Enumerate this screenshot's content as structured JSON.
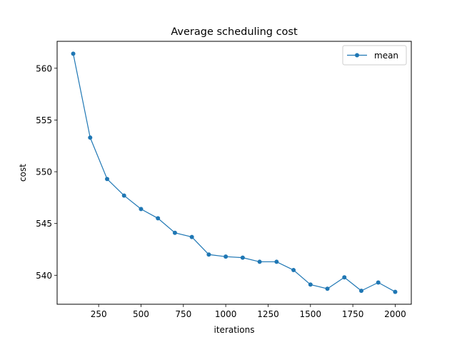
{
  "chart_data": {
    "type": "line",
    "title": "Average scheduling cost",
    "xlabel": "iterations",
    "ylabel": "cost",
    "xlim": [
      5,
      2095
    ],
    "ylim": [
      537.2,
      562.6
    ],
    "xticks": [
      250,
      500,
      750,
      1000,
      1250,
      1500,
      1750,
      2000
    ],
    "yticks": [
      540,
      545,
      550,
      555,
      560
    ],
    "grid": false,
    "legend_position": "top-right",
    "series": [
      {
        "name": "mean",
        "color": "#1f77b4",
        "marker": "circle",
        "x": [
          100,
          200,
          300,
          400,
          500,
          600,
          700,
          800,
          900,
          1000,
          1100,
          1200,
          1300,
          1400,
          1500,
          1600,
          1700,
          1800,
          1900,
          2000
        ],
        "values": [
          561.4,
          553.3,
          549.3,
          547.7,
          546.4,
          545.5,
          544.1,
          543.7,
          542.0,
          541.8,
          541.7,
          541.3,
          541.3,
          540.5,
          539.1,
          538.7,
          539.8,
          538.5,
          539.3,
          538.4
        ]
      }
    ]
  }
}
